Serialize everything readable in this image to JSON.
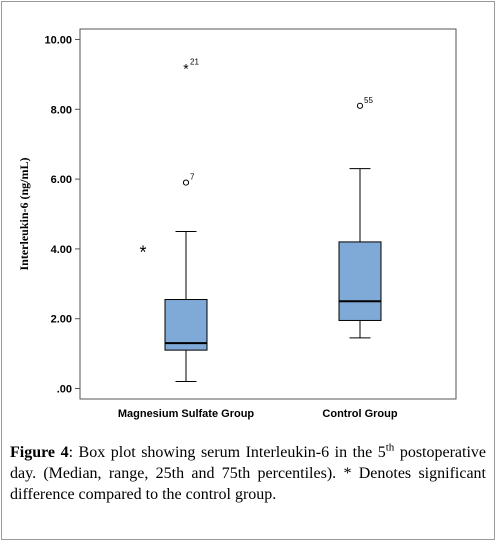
{
  "chart_data": {
    "type": "box",
    "ylabel": "Interleukin-6 (ng/mL)",
    "ylim": [
      -0.3,
      10.3
    ],
    "yticks": [
      0,
      2,
      4,
      6,
      8,
      10
    ],
    "ytick_labels": [
      ".00",
      "2.00",
      "4.00",
      "6.00",
      "8.00",
      "10.00"
    ],
    "categories": [
      "Magnesium Sulfate Group",
      "Control Group"
    ],
    "boxes": [
      {
        "category": "Magnesium Sulfate Group",
        "min": 0.2,
        "q1": 1.1,
        "median": 1.3,
        "q3": 2.55,
        "max": 4.5,
        "outliers": [
          {
            "value": 5.9,
            "marker": "circle",
            "label": "7"
          },
          {
            "value": 9.2,
            "marker": "star",
            "label": "21"
          }
        ]
      },
      {
        "category": "Control Group",
        "min": 1.45,
        "q1": 1.95,
        "median": 2.5,
        "q3": 4.2,
        "max": 6.3,
        "outliers": [
          {
            "value": 8.1,
            "marker": "circle",
            "label": "55"
          }
        ]
      }
    ],
    "significance_marker": {
      "symbol": "*",
      "value": 3.95
    },
    "box_color": "#7fa9d6",
    "grid": false
  },
  "caption": {
    "label": "Figure 4",
    "text_before_sup": ": Box plot showing serum Interleukin-6 in the 5",
    "sup": "th",
    "text_after_sup": " postoperative day. (Median, range, 25th and 75th percentiles). * Denotes significant difference compared to the control group."
  }
}
